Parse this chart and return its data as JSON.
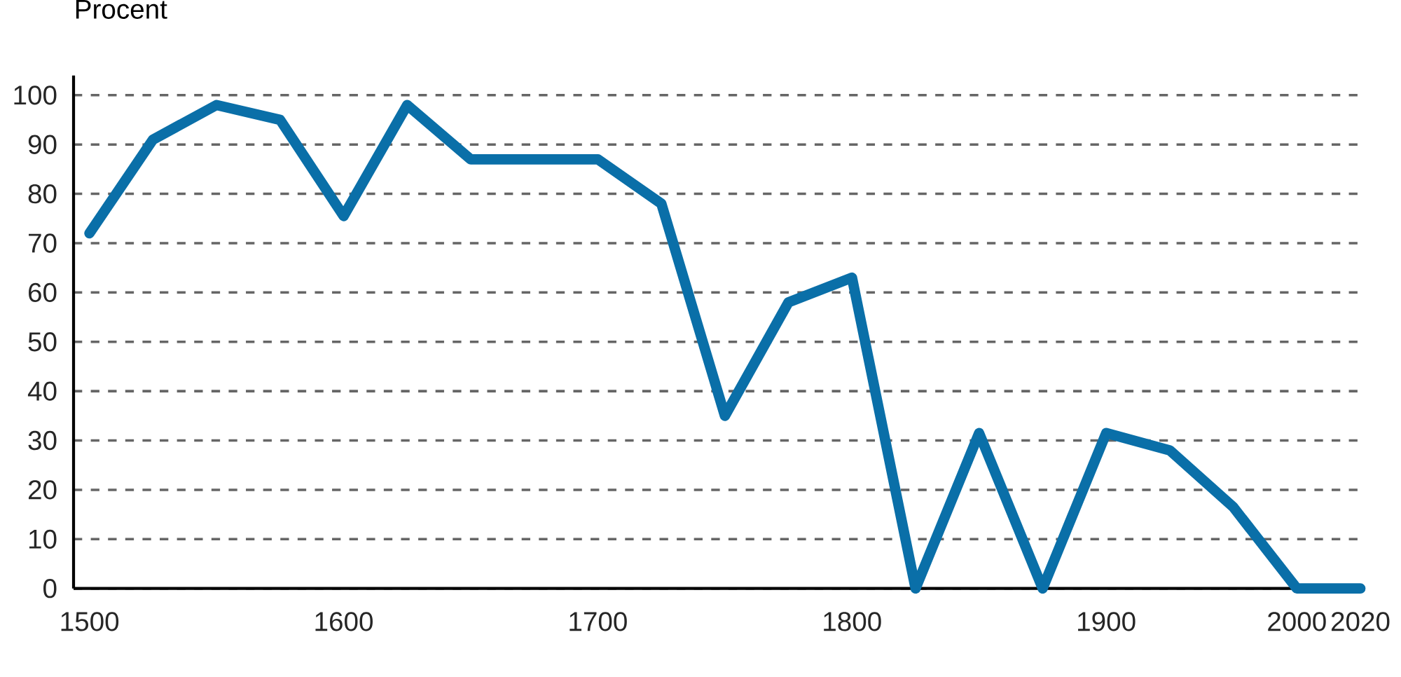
{
  "chart_data": {
    "type": "line",
    "ylabel": "Procent",
    "categories": [
      "1500",
      null,
      null,
      null,
      "1600",
      null,
      null,
      null,
      "1700",
      null,
      null,
      null,
      "1800",
      null,
      null,
      null,
      "1900",
      null,
      null,
      "2000",
      "2020"
    ],
    "series": [
      {
        "color": "#0a6fa8",
        "values": [
          72,
          91,
          98,
          95,
          75.5,
          98,
          87,
          87,
          87,
          78,
          35,
          58,
          63,
          0,
          31.5,
          0,
          31.5,
          28,
          16.5,
          0,
          0
        ]
      }
    ],
    "ylim": [
      0,
      104
    ],
    "yticks": [
      0,
      10,
      20,
      30,
      40,
      50,
      60,
      70,
      80,
      90,
      100
    ],
    "grid": "y",
    "legend": false,
    "marker": "none",
    "line_style": "solid"
  }
}
